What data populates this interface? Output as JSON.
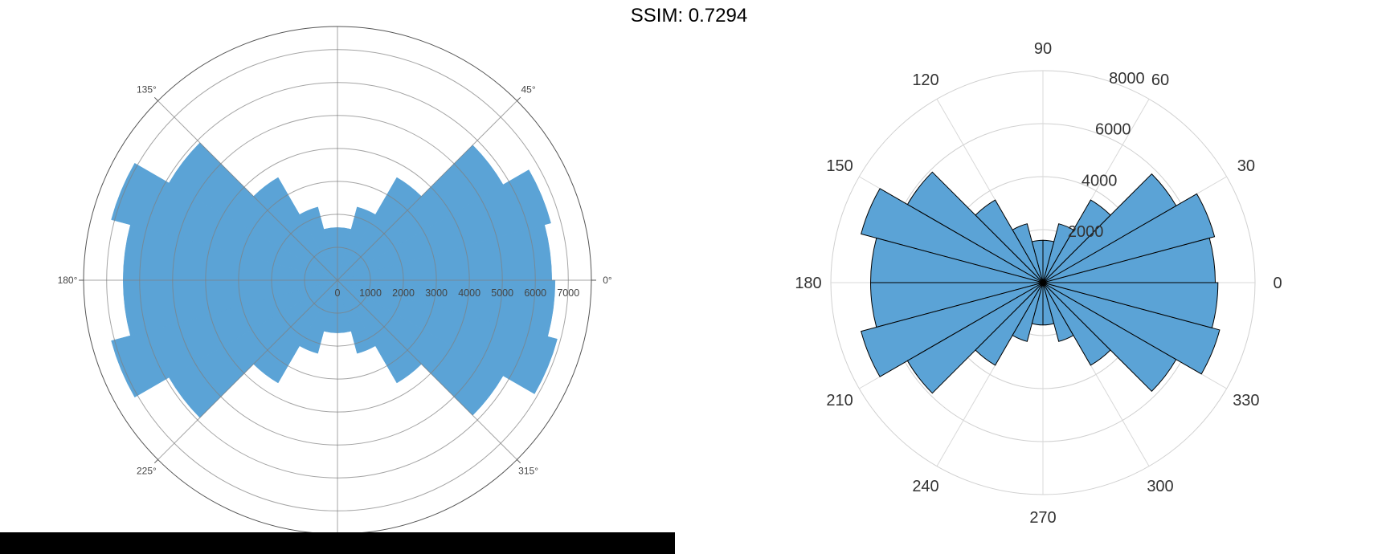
{
  "title": "SSIM: 0.7294",
  "chart_data": [
    {
      "type": "polar-histogram",
      "bin_edges_deg": [
        0,
        15,
        30,
        45,
        60,
        75,
        90,
        105,
        120,
        135,
        150,
        165,
        180,
        195,
        210,
        225,
        240,
        255,
        270,
        285,
        300,
        315,
        330,
        345,
        360
      ],
      "values": [
        6500,
        6700,
        5800,
        3600,
        2300,
        1600,
        1600,
        2300,
        3600,
        5900,
        7100,
        6500,
        6500,
        7100,
        5900,
        3600,
        2300,
        1600,
        1600,
        2300,
        3600,
        5800,
        6900,
        6600
      ],
      "rmax": 7700,
      "r_ticks": [
        0,
        1000,
        2000,
        3000,
        4000,
        5000,
        6000,
        7000
      ],
      "r_tick_labels": [
        "0",
        "1000",
        "2000",
        "3000",
        "4000",
        "5000",
        "6000",
        "7000"
      ],
      "theta_tick_labels": [
        {
          "deg": 0,
          "label": "0°"
        },
        {
          "deg": 45,
          "label": "45°"
        },
        {
          "deg": 135,
          "label": "135°"
        },
        {
          "deg": 180,
          "label": "180°"
        },
        {
          "deg": 225,
          "label": "225°"
        },
        {
          "deg": 315,
          "label": "315°"
        }
      ],
      "grid_angles_deg": [
        0,
        45,
        90,
        135,
        180,
        225,
        270,
        315
      ],
      "bar_color": "#5ba3d6",
      "grid": true
    },
    {
      "type": "polar-histogram",
      "bin_edges_deg": [
        0,
        15,
        30,
        45,
        60,
        75,
        90,
        105,
        120,
        135,
        150,
        165,
        180,
        195,
        210,
        225,
        240,
        255,
        270,
        285,
        300,
        315,
        330,
        345,
        360
      ],
      "values": [
        6500,
        6700,
        5800,
        3600,
        2300,
        1600,
        1600,
        2300,
        3600,
        5900,
        7100,
        6500,
        6500,
        7100,
        5900,
        3600,
        2300,
        1600,
        1600,
        2300,
        3600,
        5800,
        6900,
        6600
      ],
      "rmax": 8000,
      "r_ticks": [
        2000,
        4000,
        6000,
        8000
      ],
      "r_tick_labels": [
        "2000",
        "4000",
        "6000",
        "8000"
      ],
      "theta_tick_labels": [
        {
          "deg": 0,
          "label": "0"
        },
        {
          "deg": 30,
          "label": "30"
        },
        {
          "deg": 60,
          "label": "60"
        },
        {
          "deg": 90,
          "label": "90"
        },
        {
          "deg": 120,
          "label": "120"
        },
        {
          "deg": 150,
          "label": "150"
        },
        {
          "deg": 180,
          "label": "180"
        },
        {
          "deg": 210,
          "label": "210"
        },
        {
          "deg": 240,
          "label": "240"
        },
        {
          "deg": 270,
          "label": "270"
        },
        {
          "deg": 300,
          "label": "300"
        },
        {
          "deg": 330,
          "label": "330"
        }
      ],
      "bar_color": "#5ba3d6",
      "bar_edge_color": "#000000",
      "grid": true
    }
  ]
}
